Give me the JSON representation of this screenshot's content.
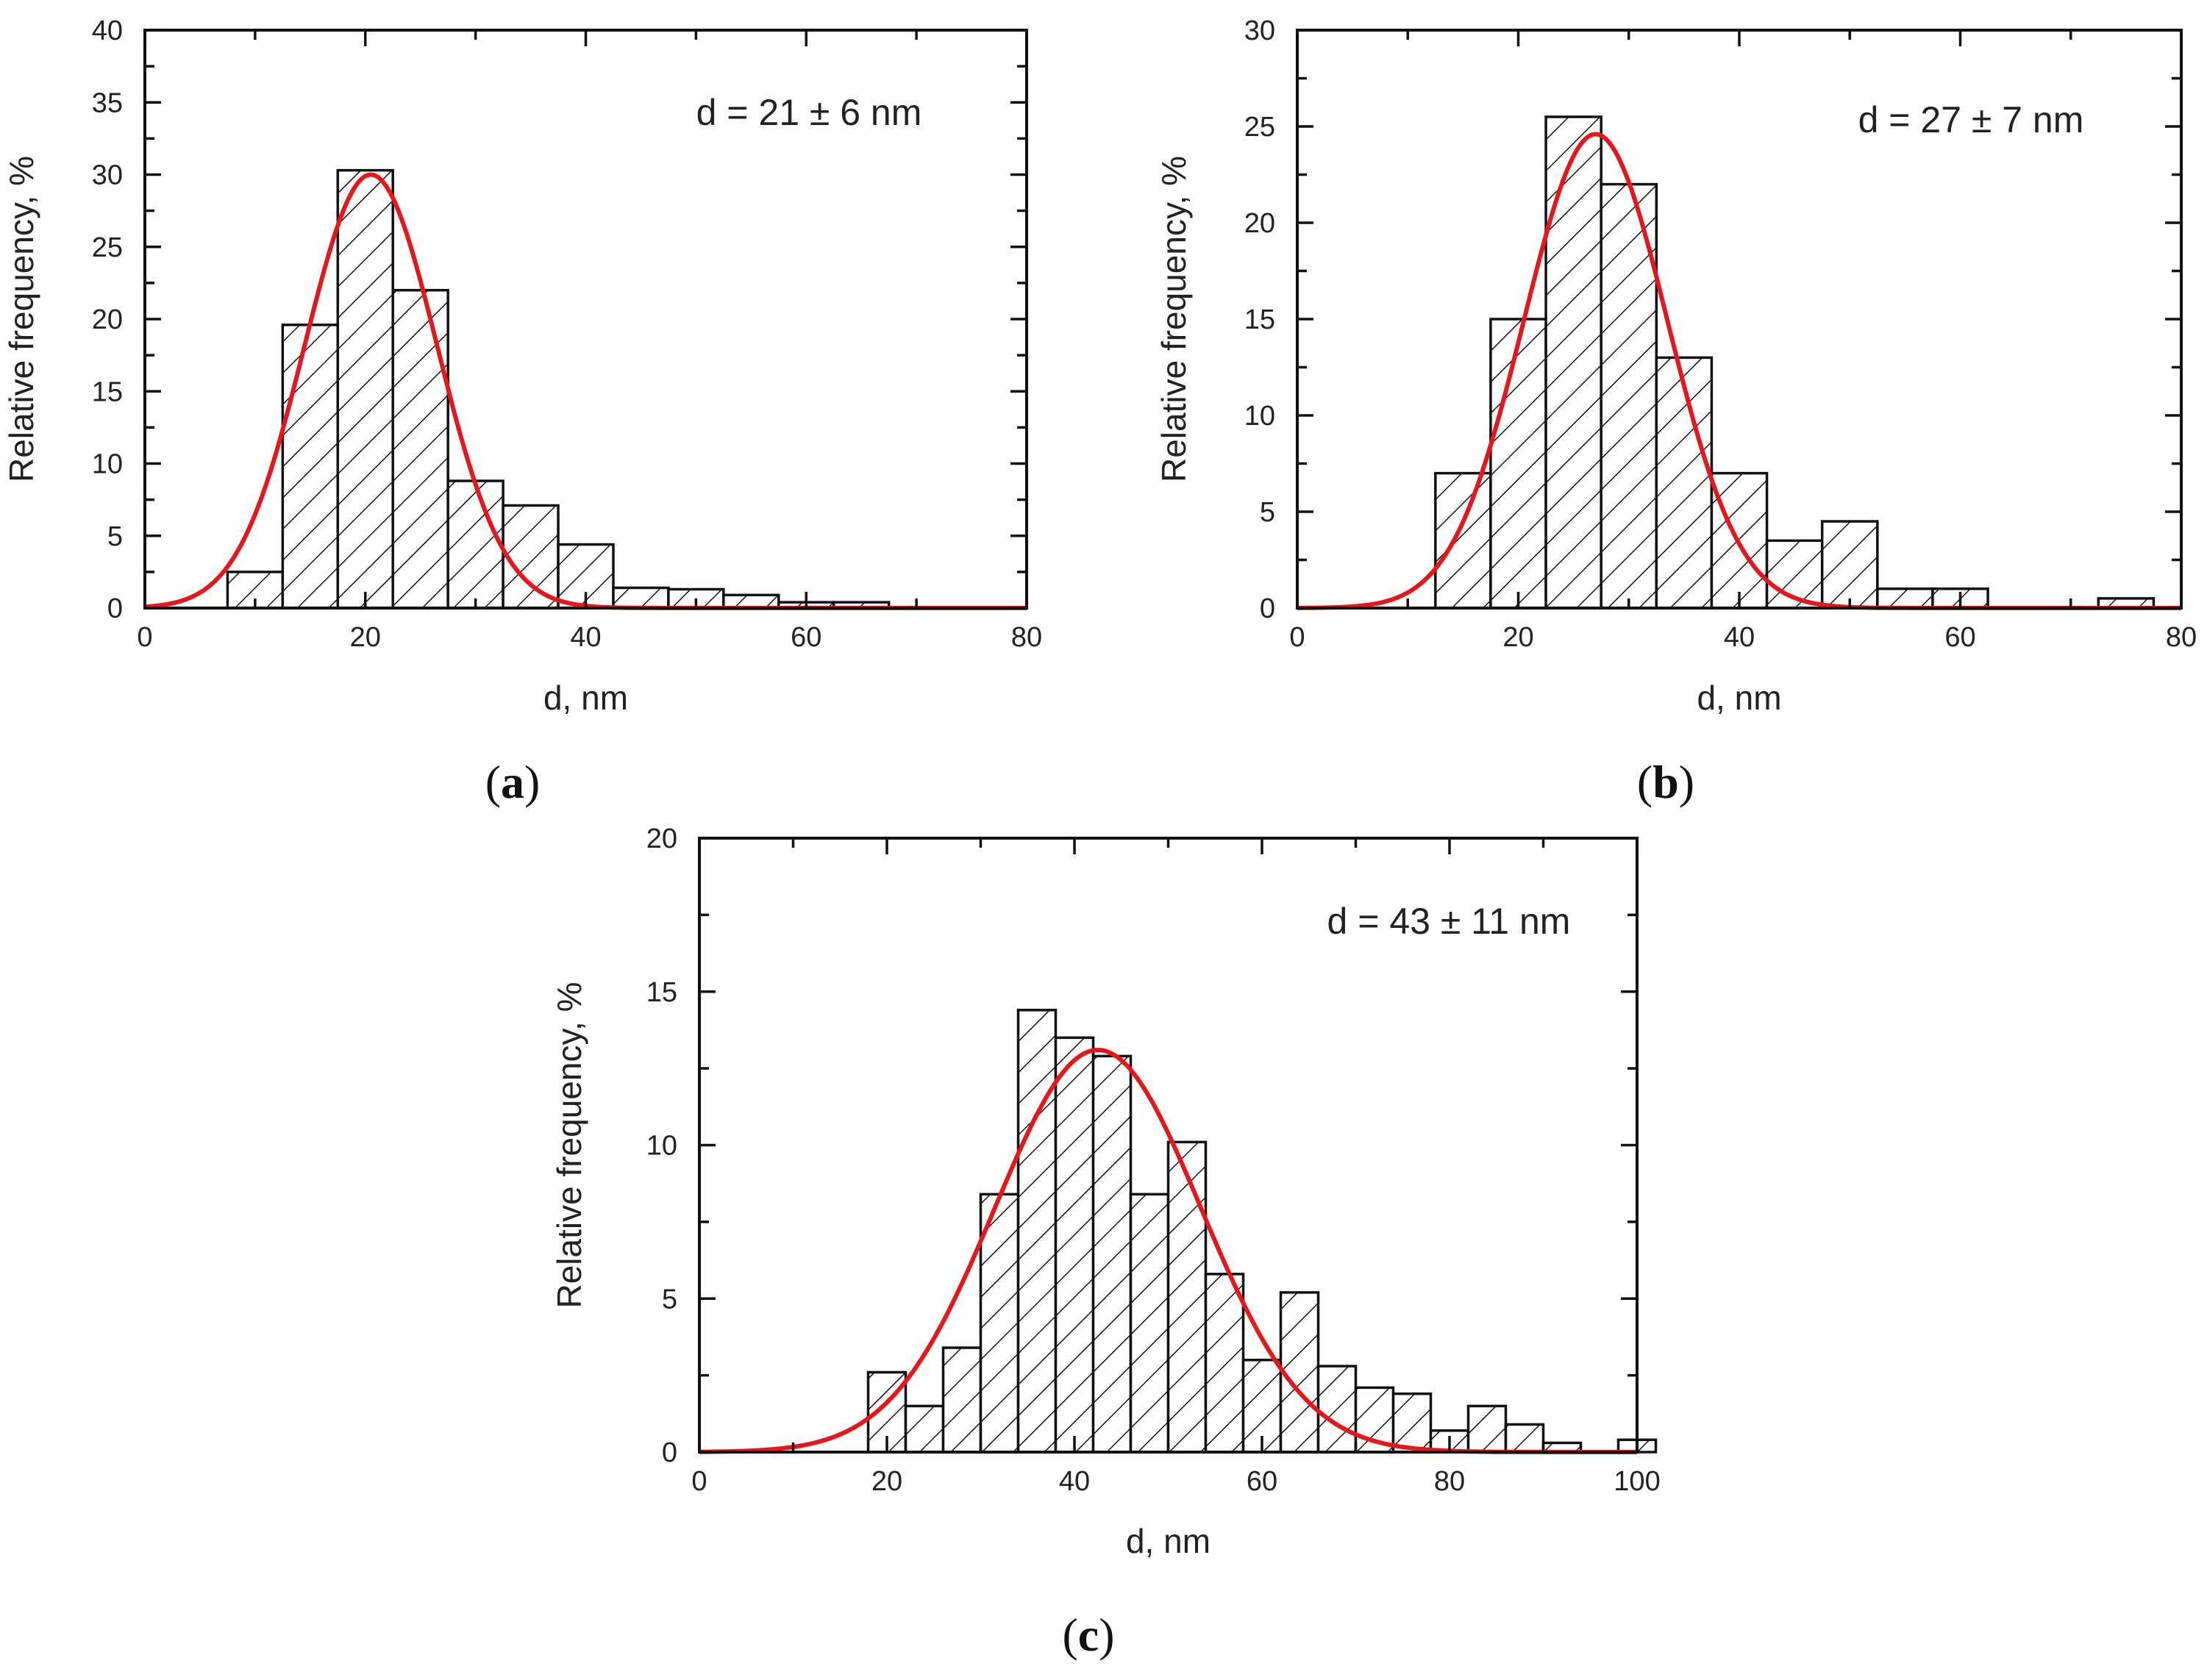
{
  "chart_data": [
    {
      "id": "a",
      "type": "bar",
      "panel_label": "a",
      "title": "",
      "xlabel": "d, nm",
      "ylabel": "Relative frequency, %",
      "xlim": [
        0,
        80
      ],
      "ylim": [
        0,
        40
      ],
      "xticks": [
        0,
        20,
        40,
        60,
        80
      ],
      "yticks": [
        0,
        5,
        10,
        15,
        20,
        25,
        30,
        35,
        40
      ],
      "annotation": "d = 21 ± 6 nm",
      "bin_width": 5,
      "bin_starts": [
        7.5,
        12.5,
        17.5,
        22.5,
        27.5,
        32.5,
        37.5,
        42.5,
        47.5,
        52.5,
        57.5,
        62.5
      ],
      "values": [
        2.5,
        19.6,
        30.3,
        22.0,
        8.8,
        7.1,
        4.4,
        1.4,
        1.3,
        0.9,
        0.4,
        0.4
      ],
      "fit": {
        "type": "gaussian",
        "mean": 20.5,
        "sigma": 6,
        "peak": 30
      }
    },
    {
      "id": "b",
      "type": "bar",
      "panel_label": "b",
      "title": "",
      "xlabel": "d, nm",
      "ylabel": "Relative frequency, %",
      "xlim": [
        0,
        80
      ],
      "ylim": [
        0,
        30
      ],
      "xticks": [
        0,
        20,
        40,
        60,
        80
      ],
      "yticks": [
        0,
        5,
        10,
        15,
        20,
        25,
        30
      ],
      "annotation": "d = 27 ± 7 nm",
      "bin_width": 5,
      "bin_starts": [
        12.5,
        17.5,
        22.5,
        27.5,
        32.5,
        37.5,
        42.5,
        47.5,
        52.5,
        57.5,
        62.5,
        67.5,
        72.5
      ],
      "values": [
        7.0,
        15.0,
        25.5,
        22.0,
        13.0,
        7.0,
        3.5,
        4.5,
        1.0,
        1.0,
        0,
        0,
        0.5
      ],
      "fit": {
        "type": "gaussian",
        "mean": 27,
        "sigma": 6.5,
        "peak": 24.6
      }
    },
    {
      "id": "c",
      "type": "bar",
      "panel_label": "c",
      "title": "",
      "xlabel": "d, nm",
      "ylabel": "Relative frequency, %",
      "xlim": [
        0,
        100
      ],
      "ylim": [
        0,
        20
      ],
      "xticks": [
        0,
        20,
        40,
        60,
        80,
        100
      ],
      "yticks": [
        0,
        5,
        10,
        15,
        20
      ],
      "annotation": "d = 43 ± 11 nm",
      "bin_width": 4,
      "bin_starts": [
        18,
        22,
        26,
        30,
        34,
        38,
        42,
        46,
        50,
        54,
        58,
        62,
        66,
        70,
        74,
        78,
        82,
        86,
        90,
        94,
        98
      ],
      "values": [
        2.6,
        1.5,
        3.4,
        8.4,
        14.4,
        13.5,
        12.9,
        8.4,
        10.1,
        5.8,
        3.0,
        5.2,
        2.8,
        2.1,
        1.9,
        0.7,
        1.5,
        0.9,
        0.3,
        0,
        0.4
      ],
      "fit": {
        "type": "gaussian",
        "mean": 42.5,
        "sigma": 11,
        "peak": 13.1
      }
    }
  ]
}
